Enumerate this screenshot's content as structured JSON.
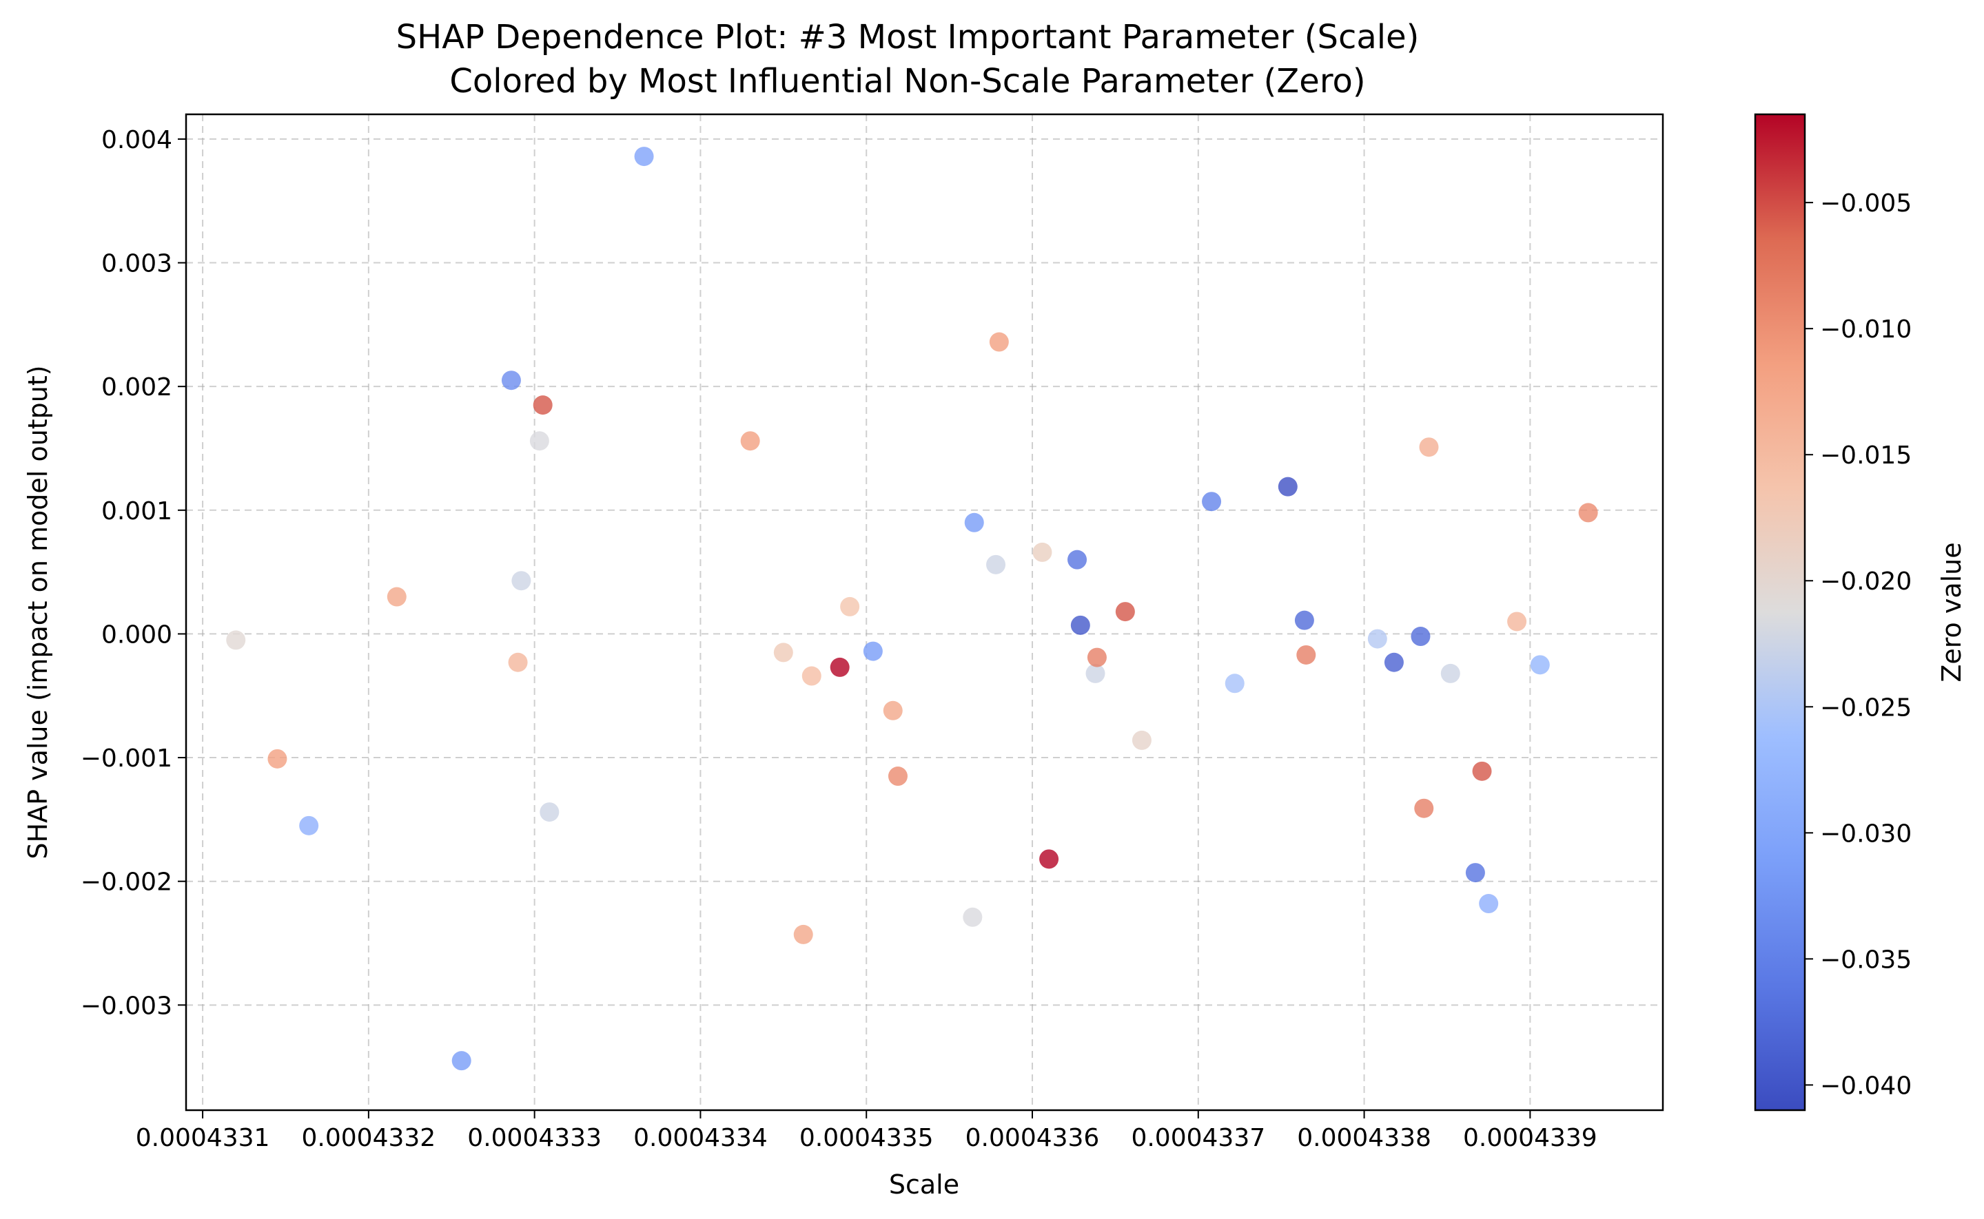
{
  "chart_data": {
    "type": "scatter",
    "title": "SHAP Dependence Plot: #3 Most Important Parameter (Scale)",
    "subtitle": "Colored by Most Influential Non-Scale Parameter (Zero)",
    "xlabel": "Scale",
    "ylabel": "SHAP value (impact on model output)",
    "xlim": [
      0.00043309,
      0.00043398
    ],
    "ylim": [
      -0.00385,
      0.0042
    ],
    "x_ticks": [
      0.0004331,
      0.0004332,
      0.0004333,
      0.0004334,
      0.0004335,
      0.0004336,
      0.0004337,
      0.0004338,
      0.0004339
    ],
    "x_tick_labels": [
      "0.0004331",
      "0.0004332",
      "0.0004333",
      "0.0004334",
      "0.0004335",
      "0.0004336",
      "0.0004337",
      "0.0004338",
      "0.0004339"
    ],
    "y_ticks": [
      -0.003,
      -0.002,
      -0.001,
      0.0,
      0.001,
      0.002,
      0.003,
      0.004
    ],
    "y_tick_labels": [
      "−0.003",
      "−0.002",
      "−0.001",
      "0.000",
      "0.001",
      "0.002",
      "0.003",
      "0.004"
    ],
    "grid": true,
    "colorbar": {
      "label": "Zero value",
      "colormap": "coolwarm",
      "range": [
        -0.041,
        -0.0015
      ],
      "ticks": [
        -0.04,
        -0.035,
        -0.03,
        -0.025,
        -0.02,
        -0.015,
        -0.01,
        -0.005
      ],
      "tick_labels": [
        "−0.040",
        "−0.035",
        "−0.030",
        "−0.025",
        "−0.020",
        "−0.015",
        "−0.010",
        "−0.005"
      ]
    },
    "colors": {
      "cold": "#3b4cc0",
      "neutral": "#dddcdc",
      "warm": "#b40426"
    },
    "points": [
      {
        "x": 0.00043312,
        "y": -5e-05,
        "c": -0.0205
      },
      {
        "x": 0.000433145,
        "y": -0.00101,
        "c": -0.0115
      },
      {
        "x": 0.000433164,
        "y": -0.00155,
        "c": -0.0285
      },
      {
        "x": 0.000433217,
        "y": 0.0003,
        "c": -0.0125
      },
      {
        "x": 0.000433256,
        "y": -0.00345,
        "c": -0.0315
      },
      {
        "x": 0.000433286,
        "y": 0.00205,
        "c": -0.0335
      },
      {
        "x": 0.00043329,
        "y": -0.00023,
        "c": -0.0145
      },
      {
        "x": 0.000433292,
        "y": 0.00043,
        "c": -0.0225
      },
      {
        "x": 0.000433303,
        "y": 0.00156,
        "c": -0.0215
      },
      {
        "x": 0.000433305,
        "y": 0.00185,
        "c": -0.0055
      },
      {
        "x": 0.000433309,
        "y": -0.00144,
        "c": -0.0225
      },
      {
        "x": 0.000433366,
        "y": 0.00386,
        "c": -0.0305
      },
      {
        "x": 0.00043343,
        "y": 0.00156,
        "c": -0.0115
      },
      {
        "x": 0.00043345,
        "y": -0.00015,
        "c": -0.0175
      },
      {
        "x": 0.000433462,
        "y": -0.00243,
        "c": -0.0125
      },
      {
        "x": 0.000433467,
        "y": -0.00034,
        "c": -0.0155
      },
      {
        "x": 0.000433484,
        "y": -0.00027,
        "c": -0.0015
      },
      {
        "x": 0.00043349,
        "y": 0.00022,
        "c": -0.0165
      },
      {
        "x": 0.000433504,
        "y": -0.00014,
        "c": -0.0315
      },
      {
        "x": 0.000433516,
        "y": -0.00062,
        "c": -0.0125
      },
      {
        "x": 0.000433519,
        "y": -0.00115,
        "c": -0.0095
      },
      {
        "x": 0.000433564,
        "y": -0.00229,
        "c": -0.0215
      },
      {
        "x": 0.000433565,
        "y": 0.0009,
        "c": -0.0315
      },
      {
        "x": 0.000433578,
        "y": 0.00056,
        "c": -0.0225
      },
      {
        "x": 0.00043358,
        "y": 0.00236,
        "c": -0.0115
      },
      {
        "x": 0.000433606,
        "y": 0.00066,
        "c": -0.0185
      },
      {
        "x": 0.00043361,
        "y": -0.00182,
        "c": -0.0015
      },
      {
        "x": 0.000433627,
        "y": 0.0006,
        "c": -0.0365
      },
      {
        "x": 0.000433629,
        "y": 7e-05,
        "c": -0.0395
      },
      {
        "x": 0.000433638,
        "y": -0.00032,
        "c": -0.0225
      },
      {
        "x": 0.000433639,
        "y": -0.00019,
        "c": -0.0085
      },
      {
        "x": 0.000433656,
        "y": 0.00018,
        "c": -0.0055
      },
      {
        "x": 0.000433666,
        "y": -0.00086,
        "c": -0.0195
      },
      {
        "x": 0.000433708,
        "y": 0.00107,
        "c": -0.0345
      },
      {
        "x": 0.000433722,
        "y": -0.0004,
        "c": -0.0255
      },
      {
        "x": 0.000433754,
        "y": 0.00119,
        "c": -0.0405
      },
      {
        "x": 0.000433764,
        "y": 0.00011,
        "c": -0.0375
      },
      {
        "x": 0.000433765,
        "y": -0.00017,
        "c": -0.0085
      },
      {
        "x": 0.000433808,
        "y": -4e-05,
        "c": -0.0245
      },
      {
        "x": 0.000433818,
        "y": -0.00023,
        "c": -0.0385
      },
      {
        "x": 0.000433834,
        "y": -2e-05,
        "c": -0.0375
      },
      {
        "x": 0.000433836,
        "y": -0.00141,
        "c": -0.0085
      },
      {
        "x": 0.000433839,
        "y": 0.00151,
        "c": -0.0135
      },
      {
        "x": 0.000433852,
        "y": -0.00032,
        "c": -0.0225
      },
      {
        "x": 0.000433867,
        "y": -0.00193,
        "c": -0.0365
      },
      {
        "x": 0.000433871,
        "y": -0.00111,
        "c": -0.0055
      },
      {
        "x": 0.000433875,
        "y": -0.00218,
        "c": -0.0285
      },
      {
        "x": 0.000433892,
        "y": 0.0001,
        "c": -0.0145
      },
      {
        "x": 0.000433906,
        "y": -0.00025,
        "c": -0.0275
      },
      {
        "x": 0.000433935,
        "y": 0.00098,
        "c": -0.0095
      }
    ]
  }
}
